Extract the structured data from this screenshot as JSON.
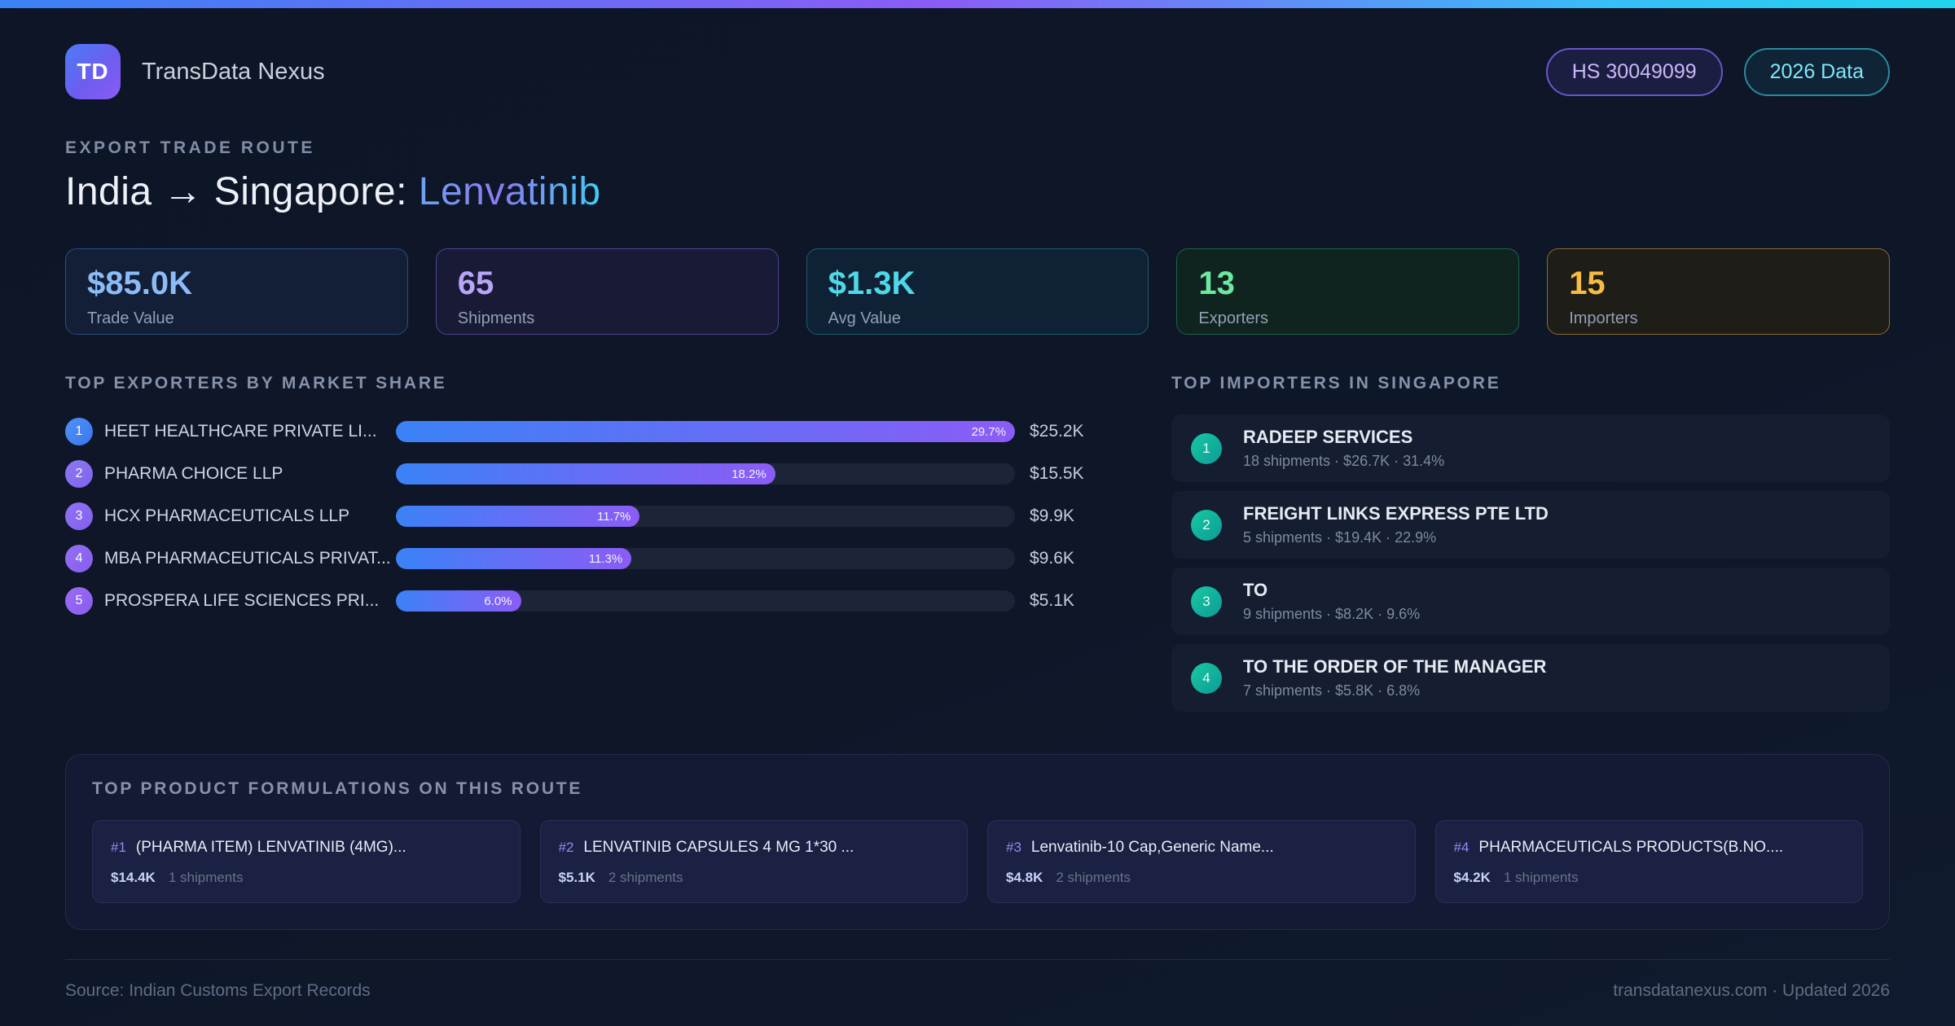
{
  "brand": {
    "logo": "TD",
    "name": "TransData Nexus"
  },
  "header": {
    "hs_badge": "HS 30049099",
    "year_badge": "2026 Data",
    "eyebrow": "EXPORT TRADE ROUTE",
    "title_route": "India → Singapore:",
    "title_product": "Lenvatinib"
  },
  "stats": [
    {
      "value": "$85.0K",
      "label": "Trade Value",
      "accent": "#8cbcf8"
    },
    {
      "value": "65",
      "label": "Shipments",
      "accent": "#b7a5f8"
    },
    {
      "value": "$1.3K",
      "label": "Avg Value",
      "accent": "#4dd9e8"
    },
    {
      "value": "13",
      "label": "Exporters",
      "accent": "#6ee7a0"
    },
    {
      "value": "15",
      "label": "Importers",
      "accent": "#f6bb42"
    }
  ],
  "exporters": {
    "heading": "TOP EXPORTERS BY MARKET SHARE",
    "rows": [
      {
        "rank": "1",
        "name": "HEET HEALTHCARE PRIVATE LI...",
        "share_pct": 29.7,
        "share_label": "29.7%",
        "value": "$25.2K"
      },
      {
        "rank": "2",
        "name": "PHARMA CHOICE LLP",
        "share_pct": 18.2,
        "share_label": "18.2%",
        "value": "$15.5K"
      },
      {
        "rank": "3",
        "name": "HCX PHARMACEUTICALS LLP",
        "share_pct": 11.7,
        "share_label": "11.7%",
        "value": "$9.9K"
      },
      {
        "rank": "4",
        "name": "MBA PHARMACEUTICALS PRIVAT...",
        "share_pct": 11.3,
        "share_label": "11.3%",
        "value": "$9.6K"
      },
      {
        "rank": "5",
        "name": "PROSPERA LIFE SCIENCES PRI...",
        "share_pct": 6.0,
        "share_label": "6.0%",
        "value": "$5.1K"
      }
    ]
  },
  "importers": {
    "heading": "TOP IMPORTERS IN SINGAPORE",
    "rows": [
      {
        "rank": "1",
        "name": "RADEEP SERVICES",
        "meta": "18 shipments · $26.7K · 31.4%"
      },
      {
        "rank": "2",
        "name": "FREIGHT LINKS EXPRESS PTE LTD",
        "meta": "5 shipments · $19.4K · 22.9%"
      },
      {
        "rank": "3",
        "name": "TO",
        "meta": "9 shipments · $8.2K · 9.6%"
      },
      {
        "rank": "4",
        "name": "TO THE ORDER OF THE MANAGER",
        "meta": "7 shipments · $5.8K · 6.8%"
      }
    ]
  },
  "products": {
    "heading": "TOP PRODUCT FORMULATIONS ON THIS ROUTE",
    "cards": [
      {
        "rank": "#1",
        "name": "(PHARMA ITEM) LENVATINIB (4MG)...",
        "value": "$14.4K",
        "shipments": "1 shipments"
      },
      {
        "rank": "#2",
        "name": "LENVATINIB CAPSULES 4 MG 1*30 ...",
        "value": "$5.1K",
        "shipments": "2 shipments"
      },
      {
        "rank": "#3",
        "name": "Lenvatinib-10 Cap,Generic Name...",
        "value": "$4.8K",
        "shipments": "2 shipments"
      },
      {
        "rank": "#4",
        "name": "PHARMACEUTICALS PRODUCTS(B.NO....",
        "value": "$4.2K",
        "shipments": "1 shipments"
      }
    ]
  },
  "footer": {
    "source": "Source: Indian Customs Export Records",
    "site": "transdatanexus.com · Updated 2026"
  },
  "theme": {
    "topbar_gradient": [
      "#3b82f6",
      "#8b5cf6",
      "#22d3ee"
    ],
    "bar_gradient": [
      "#3b82f6",
      "#8b5cf6"
    ],
    "importer_badge_gradient": [
      "#17c9a4",
      "#0d9b94"
    ],
    "background": "#0e1728"
  },
  "chart_data": {
    "type": "bar",
    "title": "TOP EXPORTERS BY MARKET SHARE",
    "categories": [
      "HEET HEALTHCARE PRIVATE LI...",
      "PHARMA CHOICE LLP",
      "HCX PHARMACEUTICALS LLP",
      "MBA PHARMACEUTICALS PRIVAT...",
      "PROSPERA LIFE SCIENCES PRI..."
    ],
    "values": [
      29.7,
      18.2,
      11.7,
      11.3,
      6.0
    ],
    "value_labels": [
      "$25.2K",
      "$15.5K",
      "$9.9K",
      "$9.6K",
      "$5.1K"
    ],
    "xlabel": "",
    "ylabel": "Market share %",
    "xlim": [
      0,
      29.7
    ],
    "orientation": "horizontal",
    "grid": false
  }
}
